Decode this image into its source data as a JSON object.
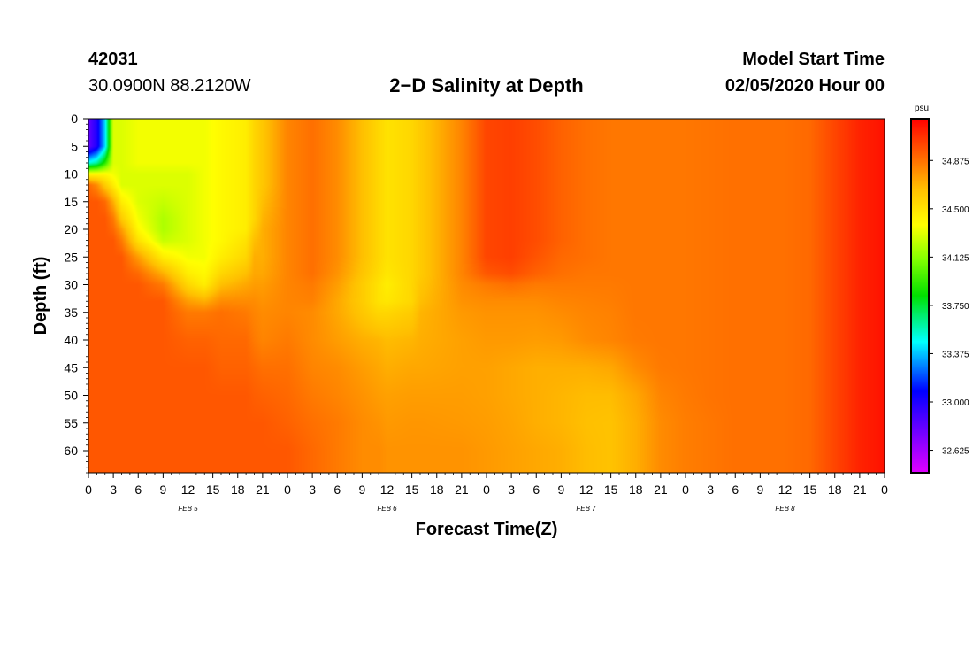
{
  "header": {
    "station": "42031",
    "coords": "30.0900N 88.2120W",
    "title": "2−D Salinity at Depth",
    "start_label": "Model Start Time",
    "start_value": "02/05/2020 Hour 00"
  },
  "chart_data": {
    "type": "heatmap",
    "title": "2−D Salinity at Depth",
    "xlabel": "Forecast Time(Z)",
    "ylabel": "Depth (ft)",
    "x_range_hours": [
      0,
      96
    ],
    "y_range_ft": [
      0,
      64
    ],
    "y_inverted": true,
    "x_tick_labels": [
      "0",
      "3",
      "6",
      "9",
      "12",
      "15",
      "18",
      "21",
      "0",
      "3",
      "6",
      "9",
      "12",
      "15",
      "18",
      "21",
      "0",
      "3",
      "6",
      "9",
      "12",
      "15",
      "18",
      "21",
      "0",
      "3",
      "6",
      "9",
      "12",
      "15",
      "18",
      "21",
      "0"
    ],
    "y_ticks": [
      0,
      5,
      10,
      15,
      20,
      25,
      30,
      35,
      40,
      45,
      50,
      55,
      60
    ],
    "y_tick_labels": [
      "0",
      "5",
      "10",
      "15",
      "20",
      "25",
      "30",
      "35",
      "40",
      "45",
      "50",
      "55",
      "60"
    ],
    "date_labels": [
      {
        "text": "FEB 5",
        "hour": 12
      },
      {
        "text": "FEB 6",
        "hour": 36
      },
      {
        "text": "FEB 7",
        "hour": 60
      },
      {
        "text": "FEB 8",
        "hour": 84
      }
    ],
    "colorbar": {
      "unit": "psu",
      "min": 32.45,
      "max": 35.2,
      "tick_values": [
        32.625,
        33.0,
        33.375,
        33.75,
        34.125,
        34.5,
        34.875
      ],
      "tick_labels": [
        "32.625",
        "33.000",
        "33.375",
        "33.750",
        "34.125",
        "34.500",
        "34.875"
      ]
    },
    "depths_ft": [
      0,
      2,
      5,
      8,
      10,
      12,
      15,
      18,
      20,
      22,
      25,
      28,
      30,
      33,
      35,
      40,
      45,
      50,
      55,
      60,
      64
    ],
    "times_h": [
      0,
      1,
      2,
      3,
      4,
      6,
      9,
      12,
      14,
      16,
      19,
      20,
      21,
      24,
      27,
      30,
      33,
      35,
      36,
      39,
      40,
      45,
      48,
      51,
      54,
      57,
      60,
      63,
      66,
      69,
      72,
      75,
      78,
      81,
      84,
      87,
      90,
      93,
      96
    ],
    "profiles": [
      [
        32.8,
        32.8,
        32.8,
        33.5,
        34.4,
        34.9,
        34.95,
        34.95,
        34.95,
        34.95,
        34.95,
        34.95,
        34.95,
        34.95,
        34.95,
        34.95,
        34.95,
        34.95,
        34.95,
        34.95,
        34.95
      ],
      [
        33.0,
        33.0,
        33.0,
        33.6,
        34.4,
        34.8,
        34.95,
        34.95,
        34.95,
        34.95,
        34.95,
        34.95,
        34.95,
        34.95,
        34.95,
        34.95,
        34.95,
        34.95,
        34.95,
        34.95,
        34.95
      ],
      [
        33.4,
        33.4,
        33.4,
        33.9,
        34.4,
        34.6,
        34.9,
        34.95,
        34.95,
        34.95,
        34.95,
        34.95,
        34.95,
        34.95,
        34.95,
        34.95,
        34.95,
        34.95,
        34.95,
        34.95,
        34.95
      ],
      [
        34.3,
        34.3,
        34.3,
        34.3,
        34.35,
        34.45,
        34.7,
        34.85,
        34.9,
        34.95,
        34.95,
        34.95,
        34.95,
        34.95,
        34.95,
        34.95,
        34.95,
        34.95,
        34.95,
        34.95,
        34.95
      ],
      [
        34.3,
        34.3,
        34.3,
        34.3,
        34.3,
        34.3,
        34.45,
        34.6,
        34.75,
        34.85,
        34.95,
        34.95,
        34.95,
        34.95,
        34.95,
        34.95,
        34.95,
        34.95,
        34.95,
        34.95,
        34.95
      ],
      [
        34.35,
        34.35,
        34.35,
        34.35,
        34.3,
        34.3,
        34.3,
        34.35,
        34.4,
        34.5,
        34.75,
        34.9,
        34.95,
        34.95,
        34.95,
        34.95,
        34.95,
        34.95,
        34.95,
        34.95,
        34.95
      ],
      [
        34.35,
        34.35,
        34.35,
        34.35,
        34.3,
        34.3,
        34.25,
        34.2,
        34.2,
        34.25,
        34.45,
        34.7,
        34.85,
        34.95,
        34.95,
        34.95,
        34.95,
        34.95,
        34.95,
        34.95,
        34.95
      ],
      [
        34.35,
        34.35,
        34.35,
        34.35,
        34.3,
        34.3,
        34.3,
        34.3,
        34.3,
        34.3,
        34.35,
        34.45,
        34.55,
        34.75,
        34.85,
        34.92,
        34.95,
        34.95,
        34.95,
        34.95,
        34.95
      ],
      [
        34.35,
        34.35,
        34.35,
        34.35,
        34.35,
        34.35,
        34.35,
        34.35,
        34.35,
        34.35,
        34.35,
        34.4,
        34.45,
        34.7,
        34.85,
        34.92,
        34.95,
        34.95,
        34.95,
        34.95,
        34.95
      ],
      [
        34.4,
        34.4,
        34.4,
        34.4,
        34.4,
        34.4,
        34.4,
        34.4,
        34.4,
        34.4,
        34.45,
        34.55,
        34.65,
        34.8,
        34.88,
        34.9,
        34.92,
        34.95,
        34.95,
        34.95,
        34.95
      ],
      [
        34.45,
        34.45,
        34.45,
        34.45,
        34.45,
        34.45,
        34.45,
        34.45,
        34.45,
        34.5,
        34.55,
        34.65,
        34.72,
        34.8,
        34.85,
        34.9,
        34.92,
        34.95,
        34.95,
        34.95,
        34.95
      ],
      [
        34.55,
        34.55,
        34.55,
        34.55,
        34.55,
        34.55,
        34.55,
        34.55,
        34.6,
        34.65,
        34.7,
        34.72,
        34.75,
        34.8,
        34.82,
        34.85,
        34.9,
        34.93,
        34.95,
        34.95,
        34.95
      ],
      [
        34.62,
        34.62,
        34.62,
        34.62,
        34.62,
        34.62,
        34.65,
        34.68,
        34.7,
        34.7,
        34.7,
        34.72,
        34.75,
        34.78,
        34.8,
        34.82,
        34.88,
        34.92,
        34.95,
        34.95,
        34.95
      ],
      [
        34.82,
        34.82,
        34.82,
        34.82,
        34.82,
        34.82,
        34.82,
        34.82,
        34.82,
        34.82,
        34.82,
        34.82,
        34.82,
        34.82,
        34.82,
        34.85,
        34.88,
        34.9,
        34.92,
        34.95,
        34.95
      ],
      [
        34.88,
        34.88,
        34.88,
        34.88,
        34.88,
        34.88,
        34.88,
        34.88,
        34.88,
        34.88,
        34.88,
        34.88,
        34.85,
        34.83,
        34.8,
        34.8,
        34.82,
        34.85,
        34.88,
        34.9,
        34.9
      ],
      [
        34.8,
        34.8,
        34.8,
        34.8,
        34.8,
        34.8,
        34.8,
        34.8,
        34.8,
        34.8,
        34.8,
        34.78,
        34.75,
        34.72,
        34.72,
        34.75,
        34.8,
        34.82,
        34.85,
        34.85,
        34.85
      ],
      [
        34.65,
        34.65,
        34.65,
        34.65,
        34.65,
        34.65,
        34.65,
        34.65,
        34.65,
        34.65,
        34.65,
        34.63,
        34.6,
        34.6,
        34.62,
        34.7,
        34.75,
        34.78,
        34.8,
        34.8,
        34.8
      ],
      [
        34.55,
        34.55,
        34.55,
        34.55,
        34.55,
        34.55,
        34.55,
        34.55,
        34.55,
        34.55,
        34.55,
        34.53,
        34.5,
        34.5,
        34.55,
        34.68,
        34.72,
        34.75,
        34.78,
        34.8,
        34.8
      ],
      [
        34.5,
        34.5,
        34.5,
        34.5,
        34.5,
        34.5,
        34.5,
        34.5,
        34.5,
        34.5,
        34.5,
        34.48,
        34.45,
        34.48,
        34.55,
        34.66,
        34.7,
        34.74,
        34.76,
        34.78,
        34.78
      ],
      [
        34.55,
        34.55,
        34.55,
        34.55,
        34.55,
        34.55,
        34.55,
        34.55,
        34.55,
        34.55,
        34.55,
        34.55,
        34.55,
        34.55,
        34.6,
        34.68,
        34.72,
        34.75,
        34.77,
        34.78,
        34.78
      ],
      [
        34.6,
        34.6,
        34.6,
        34.6,
        34.6,
        34.6,
        34.6,
        34.6,
        34.6,
        34.6,
        34.6,
        34.6,
        34.62,
        34.65,
        34.68,
        34.7,
        34.72,
        34.75,
        34.77,
        34.78,
        34.78
      ],
      [
        34.82,
        34.82,
        34.82,
        34.82,
        34.82,
        34.82,
        34.82,
        34.82,
        34.82,
        34.82,
        34.82,
        34.82,
        34.8,
        34.78,
        34.76,
        34.74,
        34.74,
        34.75,
        34.76,
        34.78,
        34.78
      ],
      [
        35.0,
        35.0,
        35.0,
        35.0,
        35.0,
        35.0,
        35.0,
        35.0,
        35.0,
        35.0,
        35.0,
        34.95,
        34.85,
        34.8,
        34.78,
        34.76,
        34.74,
        34.74,
        34.75,
        34.76,
        34.76
      ],
      [
        35.02,
        35.02,
        35.02,
        35.02,
        35.02,
        35.02,
        35.02,
        35.02,
        35.02,
        35.02,
        35.02,
        34.98,
        34.88,
        34.8,
        34.78,
        34.76,
        34.72,
        34.72,
        34.73,
        34.74,
        34.74
      ],
      [
        34.98,
        34.98,
        34.98,
        34.98,
        34.98,
        34.98,
        34.98,
        34.98,
        34.98,
        34.98,
        34.96,
        34.92,
        34.85,
        34.8,
        34.78,
        34.75,
        34.7,
        34.7,
        34.7,
        34.72,
        34.72
      ],
      [
        34.92,
        34.92,
        34.92,
        34.92,
        34.92,
        34.92,
        34.92,
        34.92,
        34.92,
        34.92,
        34.9,
        34.88,
        34.85,
        34.82,
        34.8,
        34.76,
        34.7,
        34.68,
        34.68,
        34.7,
        34.7
      ],
      [
        34.88,
        34.88,
        34.88,
        34.88,
        34.88,
        34.88,
        34.88,
        34.88,
        34.88,
        34.88,
        34.88,
        34.86,
        34.85,
        34.83,
        34.82,
        34.8,
        34.7,
        34.66,
        34.65,
        34.66,
        34.66
      ],
      [
        34.86,
        34.86,
        34.86,
        34.86,
        34.86,
        34.86,
        34.86,
        34.86,
        34.86,
        34.86,
        34.86,
        34.86,
        34.85,
        34.84,
        34.83,
        34.82,
        34.72,
        34.66,
        34.64,
        34.64,
        34.64
      ],
      [
        34.86,
        34.86,
        34.86,
        34.86,
        34.86,
        34.86,
        34.86,
        34.86,
        34.86,
        34.86,
        34.86,
        34.86,
        34.86,
        34.86,
        34.86,
        34.85,
        34.8,
        34.72,
        34.7,
        34.7,
        34.7
      ],
      [
        34.86,
        34.86,
        34.86,
        34.86,
        34.86,
        34.86,
        34.86,
        34.86,
        34.86,
        34.86,
        34.86,
        34.86,
        34.86,
        34.86,
        34.86,
        34.86,
        34.85,
        34.82,
        34.8,
        34.8,
        34.8
      ],
      [
        34.86,
        34.86,
        34.86,
        34.86,
        34.86,
        34.86,
        34.86,
        34.86,
        34.86,
        34.86,
        34.86,
        34.86,
        34.86,
        34.86,
        34.86,
        34.86,
        34.86,
        34.85,
        34.84,
        34.84,
        34.84
      ],
      [
        34.87,
        34.87,
        34.87,
        34.87,
        34.87,
        34.87,
        34.87,
        34.87,
        34.87,
        34.87,
        34.87,
        34.87,
        34.87,
        34.87,
        34.87,
        34.87,
        34.87,
        34.87,
        34.86,
        34.86,
        34.86
      ],
      [
        34.88,
        34.88,
        34.88,
        34.88,
        34.88,
        34.88,
        34.88,
        34.88,
        34.88,
        34.88,
        34.88,
        34.88,
        34.88,
        34.88,
        34.88,
        34.88,
        34.88,
        34.88,
        34.88,
        34.88,
        34.88
      ],
      [
        34.88,
        34.88,
        34.88,
        34.88,
        34.88,
        34.88,
        34.88,
        34.88,
        34.88,
        34.88,
        34.88,
        34.88,
        34.88,
        34.88,
        34.88,
        34.88,
        34.88,
        34.88,
        34.88,
        34.88,
        34.88
      ],
      [
        34.88,
        34.88,
        34.88,
        34.88,
        34.88,
        34.88,
        34.88,
        34.88,
        34.88,
        34.88,
        34.88,
        34.88,
        34.88,
        34.88,
        34.88,
        34.88,
        34.88,
        34.88,
        34.88,
        34.88,
        34.88
      ],
      [
        34.9,
        34.9,
        34.9,
        34.9,
        34.9,
        34.9,
        34.9,
        34.9,
        34.9,
        34.9,
        34.9,
        34.9,
        34.9,
        34.9,
        34.9,
        34.9,
        34.9,
        34.9,
        34.9,
        34.9,
        34.9
      ],
      [
        35.0,
        35.0,
        35.0,
        35.0,
        35.0,
        35.0,
        35.0,
        35.0,
        35.0,
        35.0,
        35.0,
        35.0,
        35.0,
        35.0,
        35.0,
        35.0,
        35.0,
        35.0,
        35.0,
        35.0,
        35.0
      ],
      [
        35.1,
        35.1,
        35.1,
        35.1,
        35.1,
        35.1,
        35.1,
        35.1,
        35.1,
        35.1,
        35.1,
        35.1,
        35.1,
        35.1,
        35.1,
        35.1,
        35.1,
        35.1,
        35.1,
        35.1,
        35.1
      ],
      [
        35.15,
        35.15,
        35.15,
        35.15,
        35.15,
        35.15,
        35.15,
        35.15,
        35.15,
        35.15,
        35.15,
        35.15,
        35.15,
        35.15,
        35.15,
        35.15,
        35.15,
        35.15,
        35.15,
        35.15,
        35.15
      ]
    ]
  }
}
